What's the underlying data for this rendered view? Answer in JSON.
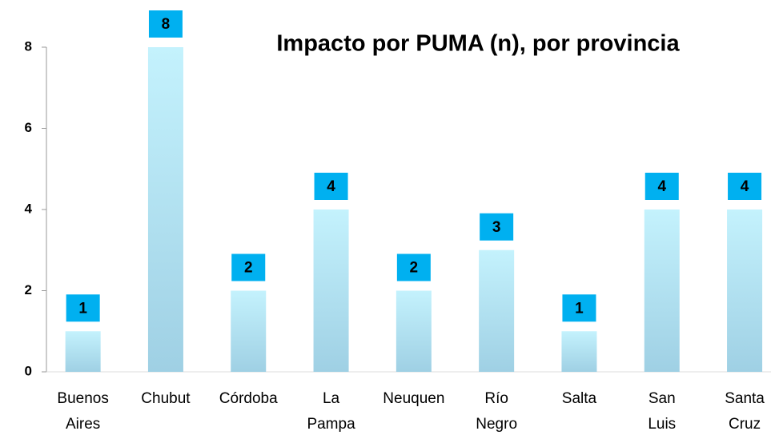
{
  "chart_data": {
    "type": "bar",
    "title": "Impacto por PUMA (n), por provincia",
    "categories": [
      "Buenos Aires",
      "Chubut",
      "Córdoba",
      "La Pampa",
      "Neuquen",
      "Río Negro",
      "Salta",
      "San Luis",
      "Santa Cruz"
    ],
    "values": [
      1,
      8,
      2,
      4,
      2,
      3,
      1,
      4,
      4
    ],
    "color": "#bfeefc",
    "label_color": "#00b0f0",
    "ylim": [
      0,
      8
    ],
    "yticks": [
      0,
      2,
      4,
      6,
      8
    ],
    "grid": false
  }
}
